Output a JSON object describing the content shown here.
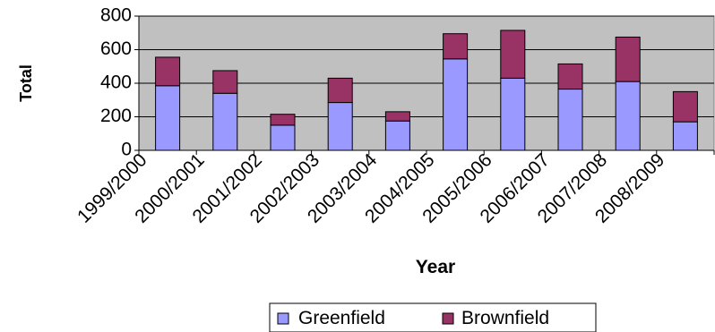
{
  "chart_data": {
    "type": "bar",
    "stacked": true,
    "x_tick_labels": [
      "1999/2000",
      "2000/2001",
      "2001/2002",
      "2002/2003",
      "2003/2004",
      "2004/2005",
      "2005/2006",
      "2006/2007",
      "2007/2008",
      "2008/2009"
    ],
    "series": [
      {
        "name": "Greenfield",
        "color": "#9999FF",
        "values": [
          385,
          340,
          150,
          285,
          175,
          545,
          430,
          365,
          410,
          170
        ]
      },
      {
        "name": "Brownfield",
        "color": "#993366",
        "values": [
          170,
          135,
          65,
          145,
          55,
          150,
          285,
          150,
          265,
          180
        ]
      }
    ],
    "xlabel": "Year",
    "ylabel": "Total",
    "ylim": [
      0,
      800
    ],
    "y_ticks": [
      0,
      200,
      400,
      600,
      800
    ],
    "plot_background": "#C0C0C0",
    "grid": true,
    "legend_position": "bottom"
  }
}
